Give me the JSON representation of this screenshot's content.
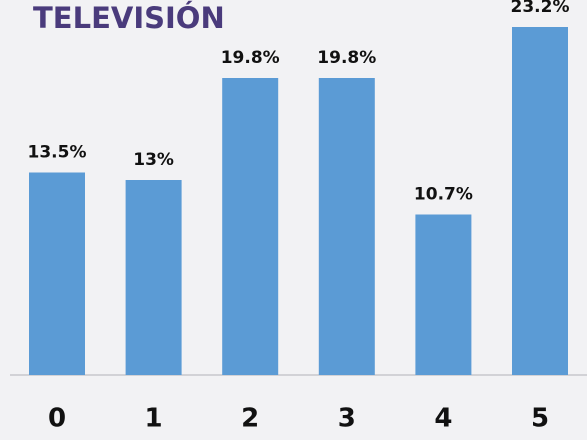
{
  "chart_data": {
    "type": "bar",
    "title": "TELEVISIÓN",
    "categories": [
      "0",
      "1",
      "2",
      "3",
      "4",
      "5"
    ],
    "values": [
      13.5,
      13,
      19.8,
      19.8,
      10.7,
      23.2
    ],
    "value_labels": [
      "13.5%",
      "13%",
      "19.8%",
      "19.8%",
      "10.7%",
      "23.2%"
    ],
    "color": "#5b9bd5"
  }
}
